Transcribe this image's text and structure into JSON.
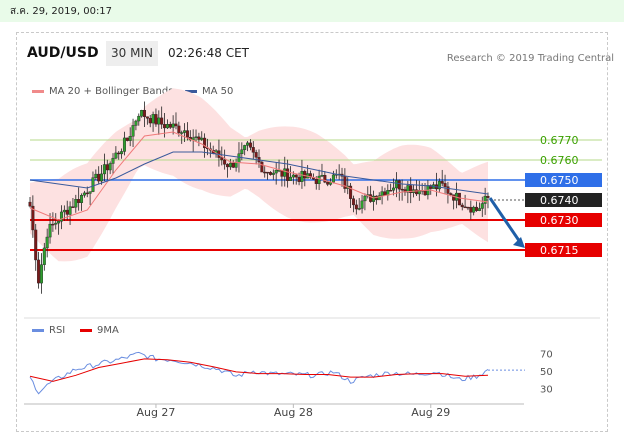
{
  "topbar": {
    "datetime": "ส.ค. 29, 2019, 00:17"
  },
  "header": {
    "symbol": "AUD/USD",
    "timeframe": "30 MIN",
    "time": "02:26:48 CET"
  },
  "legend": {
    "bollinger": {
      "label": "MA 20 + Bollinger Bands",
      "color": "#f08a8a"
    },
    "ma50": {
      "label": "MA 50",
      "color": "#3a5a9c"
    },
    "rsi": {
      "label": "RSI",
      "color": "#6a8ee0"
    },
    "rsi_ma": {
      "label": "9MA",
      "color": "#e60000"
    }
  },
  "credit": "Research © 2019 Trading Central",
  "chart_data": [
    {
      "type": "candlestick",
      "title": "AUD/USD",
      "x_labels": [
        "Aug 27",
        "Aug 28",
        "Aug 29"
      ],
      "ylim": [
        0.669,
        0.679
      ],
      "levels": [
        {
          "value": 0.677,
          "label": "0.6770",
          "kind": "target",
          "color": "#3aa000"
        },
        {
          "value": 0.676,
          "label": "0.6760",
          "kind": "target",
          "color": "#3aa000"
        },
        {
          "value": 0.675,
          "label": "0.6750",
          "kind": "pivot",
          "color": "#2f6fe8"
        },
        {
          "value": 0.674,
          "label": "0.6740",
          "kind": "last",
          "color": "#222222"
        },
        {
          "value": 0.673,
          "label": "0.6730",
          "kind": "support",
          "color": "#e60000"
        },
        {
          "value": 0.6715,
          "label": "0.6715",
          "kind": "support",
          "color": "#e60000"
        }
      ],
      "forecast": {
        "from": 0.6741,
        "to": 0.6716,
        "direction": "down"
      },
      "anchors": [
        [
          0,
          0.6737
        ],
        [
          3,
          0.67
        ],
        [
          6,
          0.6724
        ],
        [
          12,
          0.6734
        ],
        [
          18,
          0.6742
        ],
        [
          26,
          0.6755
        ],
        [
          34,
          0.677
        ],
        [
          38,
          0.6784
        ],
        [
          46,
          0.6778
        ],
        [
          54,
          0.6775
        ],
        [
          62,
          0.6766
        ],
        [
          70,
          0.6757
        ],
        [
          76,
          0.6766
        ],
        [
          82,
          0.6755
        ],
        [
          92,
          0.6752
        ],
        [
          102,
          0.675
        ],
        [
          108,
          0.6752
        ],
        [
          114,
          0.6738
        ],
        [
          120,
          0.6742
        ],
        [
          128,
          0.6748
        ],
        [
          136,
          0.6745
        ],
        [
          144,
          0.6747
        ],
        [
          150,
          0.674
        ],
        [
          156,
          0.6735
        ],
        [
          160,
          0.6741
        ]
      ],
      "ma20_anchors": [
        [
          0,
          0.6736
        ],
        [
          10,
          0.673
        ],
        [
          20,
          0.6735
        ],
        [
          30,
          0.6755
        ],
        [
          40,
          0.6772
        ],
        [
          50,
          0.6774
        ],
        [
          60,
          0.6768
        ],
        [
          70,
          0.6759
        ],
        [
          80,
          0.6758
        ],
        [
          90,
          0.6754
        ],
        [
          100,
          0.6751
        ],
        [
          110,
          0.6747
        ],
        [
          120,
          0.6741
        ],
        [
          130,
          0.6744
        ],
        [
          140,
          0.6745
        ],
        [
          150,
          0.6741
        ],
        [
          160,
          0.6739
        ]
      ],
      "ma50_anchors": [
        [
          0,
          0.675
        ],
        [
          10,
          0.6748
        ],
        [
          20,
          0.6746
        ],
        [
          30,
          0.6751
        ],
        [
          40,
          0.6758
        ],
        [
          50,
          0.6764
        ],
        [
          60,
          0.6764
        ],
        [
          70,
          0.6762
        ],
        [
          80,
          0.676
        ],
        [
          90,
          0.6758
        ],
        [
          100,
          0.6755
        ],
        [
          110,
          0.6752
        ],
        [
          120,
          0.675
        ],
        [
          130,
          0.6748
        ],
        [
          140,
          0.6747
        ],
        [
          150,
          0.6745
        ],
        [
          160,
          0.6743
        ]
      ],
      "band_width": 0.0018
    },
    {
      "type": "line",
      "title": "RSI",
      "yticks": [
        70,
        50,
        30
      ],
      "ylim": [
        20,
        80
      ],
      "rsi_anchors": [
        [
          0,
          42
        ],
        [
          3,
          26
        ],
        [
          8,
          38
        ],
        [
          16,
          52
        ],
        [
          24,
          58
        ],
        [
          32,
          64
        ],
        [
          38,
          70
        ],
        [
          44,
          64
        ],
        [
          50,
          63
        ],
        [
          58,
          58
        ],
        [
          66,
          52
        ],
        [
          72,
          44
        ],
        [
          78,
          50
        ],
        [
          84,
          47
        ],
        [
          92,
          46
        ],
        [
          100,
          45
        ],
        [
          106,
          49
        ],
        [
          112,
          38
        ],
        [
          118,
          44
        ],
        [
          126,
          48
        ],
        [
          134,
          46
        ],
        [
          142,
          49
        ],
        [
          150,
          40
        ],
        [
          156,
          44
        ],
        [
          160,
          51
        ]
      ],
      "ma_anchors": [
        [
          0,
          44
        ],
        [
          8,
          38
        ],
        [
          16,
          45
        ],
        [
          24,
          54
        ],
        [
          32,
          59
        ],
        [
          40,
          64
        ],
        [
          48,
          63
        ],
        [
          56,
          60
        ],
        [
          64,
          55
        ],
        [
          72,
          49
        ],
        [
          80,
          47
        ],
        [
          88,
          47
        ],
        [
          96,
          46
        ],
        [
          104,
          46
        ],
        [
          112,
          43
        ],
        [
          120,
          43
        ],
        [
          128,
          46
        ],
        [
          136,
          47
        ],
        [
          144,
          47
        ],
        [
          152,
          44
        ],
        [
          160,
          45
        ]
      ],
      "last": 51
    }
  ]
}
